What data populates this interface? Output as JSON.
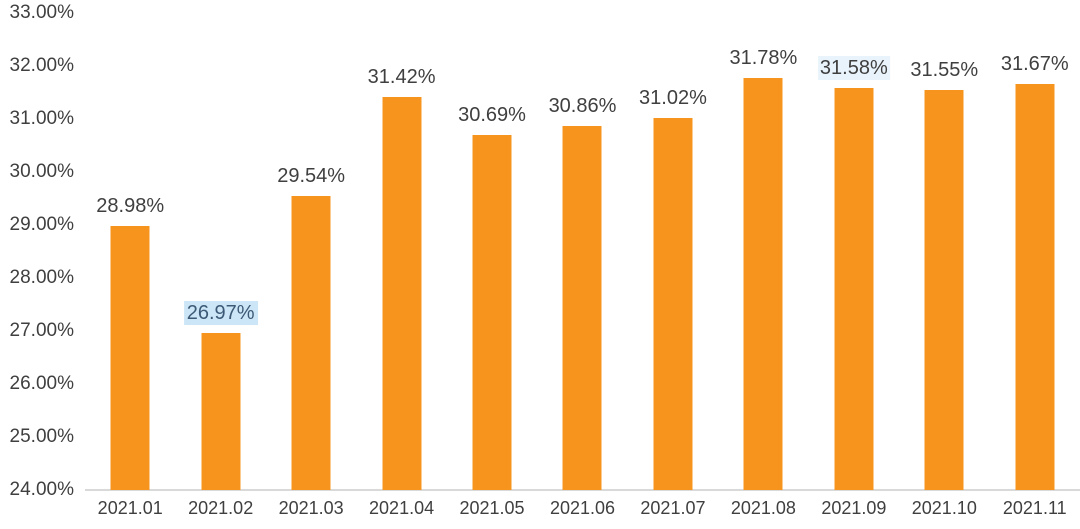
{
  "chart_data": {
    "type": "bar",
    "title": "",
    "xlabel": "",
    "ylabel": "",
    "categories": [
      "2021.01",
      "2021.02",
      "2021.03",
      "2021.04",
      "2021.05",
      "2021.06",
      "2021.07",
      "2021.08",
      "2021.09",
      "2021.10",
      "2021.11"
    ],
    "values": [
      28.98,
      26.97,
      29.54,
      31.42,
      30.69,
      30.86,
      31.02,
      31.78,
      31.58,
      31.55,
      31.67
    ],
    "value_labels": [
      "28.98%",
      "26.97%",
      "29.54%",
      "31.42%",
      "30.69%",
      "30.86%",
      "31.02%",
      "31.78%",
      "31.58%",
      "31.55%",
      "31.67%"
    ],
    "label_highlights": [
      "none",
      "strong",
      "none",
      "none",
      "none",
      "none",
      "none",
      "none",
      "faint",
      "none",
      "none"
    ],
    "ylim": [
      24,
      33
    ],
    "ytick_step": 1,
    "ytick_labels": [
      "24.00%",
      "25.00%",
      "26.00%",
      "27.00%",
      "28.00%",
      "29.00%",
      "30.00%",
      "31.00%",
      "32.00%",
      "33.00%"
    ],
    "grid": false,
    "legend": "none",
    "colors": {
      "bar": "#f7941d",
      "axis_line": "#d9d9d9",
      "tick_text": "#3f3f3f",
      "data_label_text": "#3f3f3f",
      "highlight_bg": "#cde6f7",
      "highlight_text": "#3c5a76"
    }
  }
}
